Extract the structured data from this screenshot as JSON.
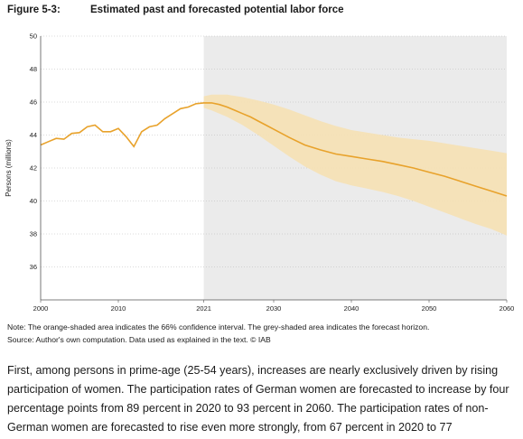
{
  "figure": {
    "number": "Figure 5-3:",
    "title": "Estimated past and forecasted potential labor force"
  },
  "chart_data": {
    "type": "line",
    "title": "Estimated past and forecasted potential labor force",
    "xlabel": "",
    "ylabel": "Persons (millions)",
    "xlim": [
      2000,
      2060
    ],
    "ylim": [
      34,
      50
    ],
    "x_ticks": [
      2000,
      2010,
      2021,
      2030,
      2040,
      2050,
      2060
    ],
    "y_ticks": [
      36,
      38,
      40,
      42,
      44,
      46,
      48,
      50
    ],
    "grid": "horizontal dotted",
    "forecast_start": 2021,
    "series": [
      {
        "kind": "line",
        "x": [
          2000,
          2001,
          2002,
          2003,
          2004,
          2005,
          2006,
          2007,
          2008,
          2009,
          2010,
          2011,
          2012,
          2013,
          2014,
          2015,
          2016,
          2017,
          2018,
          2019,
          2020,
          2021,
          2022,
          2023,
          2024,
          2025,
          2026,
          2027,
          2028,
          2029,
          2030,
          2032,
          2034,
          2036,
          2038,
          2040,
          2042,
          2044,
          2046,
          2048,
          2050,
          2052,
          2054,
          2056,
          2058,
          2060
        ],
        "y": [
          43.4,
          43.6,
          43.8,
          43.75,
          44.1,
          44.15,
          44.5,
          44.6,
          44.2,
          44.2,
          44.4,
          43.9,
          43.3,
          44.2,
          44.5,
          44.6,
          45.0,
          45.3,
          45.6,
          45.7,
          45.9,
          45.95,
          45.95,
          45.85,
          45.7,
          45.5,
          45.3,
          45.1,
          44.85,
          44.6,
          44.35,
          43.85,
          43.4,
          43.1,
          42.85,
          42.7,
          42.55,
          42.4,
          42.2,
          42.0,
          41.75,
          41.5,
          41.2,
          40.9,
          40.6,
          40.3
        ]
      },
      {
        "kind": "band",
        "label": "66% confidence interval",
        "x": [
          2021,
          2022,
          2024,
          2026,
          2028,
          2030,
          2032,
          2034,
          2036,
          2038,
          2040,
          2042,
          2044,
          2046,
          2048,
          2050,
          2052,
          2054,
          2056,
          2058,
          2060
        ],
        "upper": [
          46.35,
          46.45,
          46.45,
          46.3,
          46.1,
          45.85,
          45.55,
          45.2,
          44.85,
          44.55,
          44.3,
          44.15,
          44.0,
          43.85,
          43.75,
          43.65,
          43.5,
          43.35,
          43.2,
          43.05,
          42.9
        ],
        "lower": [
          45.65,
          45.5,
          45.1,
          44.6,
          44.0,
          43.35,
          42.7,
          42.1,
          41.6,
          41.2,
          40.95,
          40.75,
          40.55,
          40.3,
          40.0,
          39.65,
          39.3,
          38.95,
          38.6,
          38.3,
          37.9
        ]
      }
    ],
    "colors": {
      "line": "#e8a22b",
      "band": "#f6e1b4",
      "forecast_bg": "#ebebeb",
      "grid": "#b8b8b8"
    }
  },
  "note_line": "Note: The orange-shaded area indicates the 66% confidence interval. The grey-shaded area indicates the forecast horizon.",
  "source_line": "Source: Author's own computation. Data used as explained in the text. © IAB",
  "body_text": "First, among persons in prime-age (25-54 years), increases are nearly exclusively driven by rising participation of women. The participation rates of German women are forecasted to increase by four percentage points from 89 percent in 2020 to 93 percent in 2060. The participation rates of non-German women are forecasted to rise even more strongly, from 67 percent in 2020 to 77"
}
